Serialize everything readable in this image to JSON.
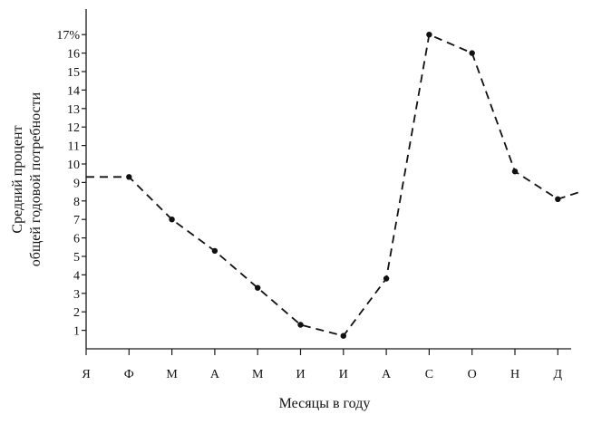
{
  "chart_data": {
    "type": "line",
    "xlabel": "Месяцы в году",
    "ylabel_lines": [
      "Средний процент",
      "общей годовой потребности"
    ],
    "categories": [
      "Я",
      "Ф",
      "М",
      "А",
      "М",
      "И",
      "И",
      "А",
      "С",
      "О",
      "Н",
      "Д"
    ],
    "y_ticks": [
      "1",
      "2",
      "3",
      "4",
      "5",
      "6",
      "7",
      "8",
      "9",
      "10",
      "11",
      "12",
      "13",
      "14",
      "15",
      "16",
      "17%"
    ],
    "ylim": [
      0,
      17
    ],
    "legend": "none",
    "grid": false,
    "series": [
      {
        "x": [
          "Ф",
          "М",
          "А",
          "М",
          "И",
          "И",
          "А",
          "С",
          "О",
          "Н",
          "Д"
        ],
        "values": [
          9.3,
          7.0,
          5.3,
          3.3,
          1.3,
          0.7,
          3.8,
          17.0,
          16.0,
          9.6,
          8.1
        ],
        "line_extends_from_y_axis_at": 9.3,
        "line_continues_past_last_point_to": 8.5
      }
    ]
  }
}
